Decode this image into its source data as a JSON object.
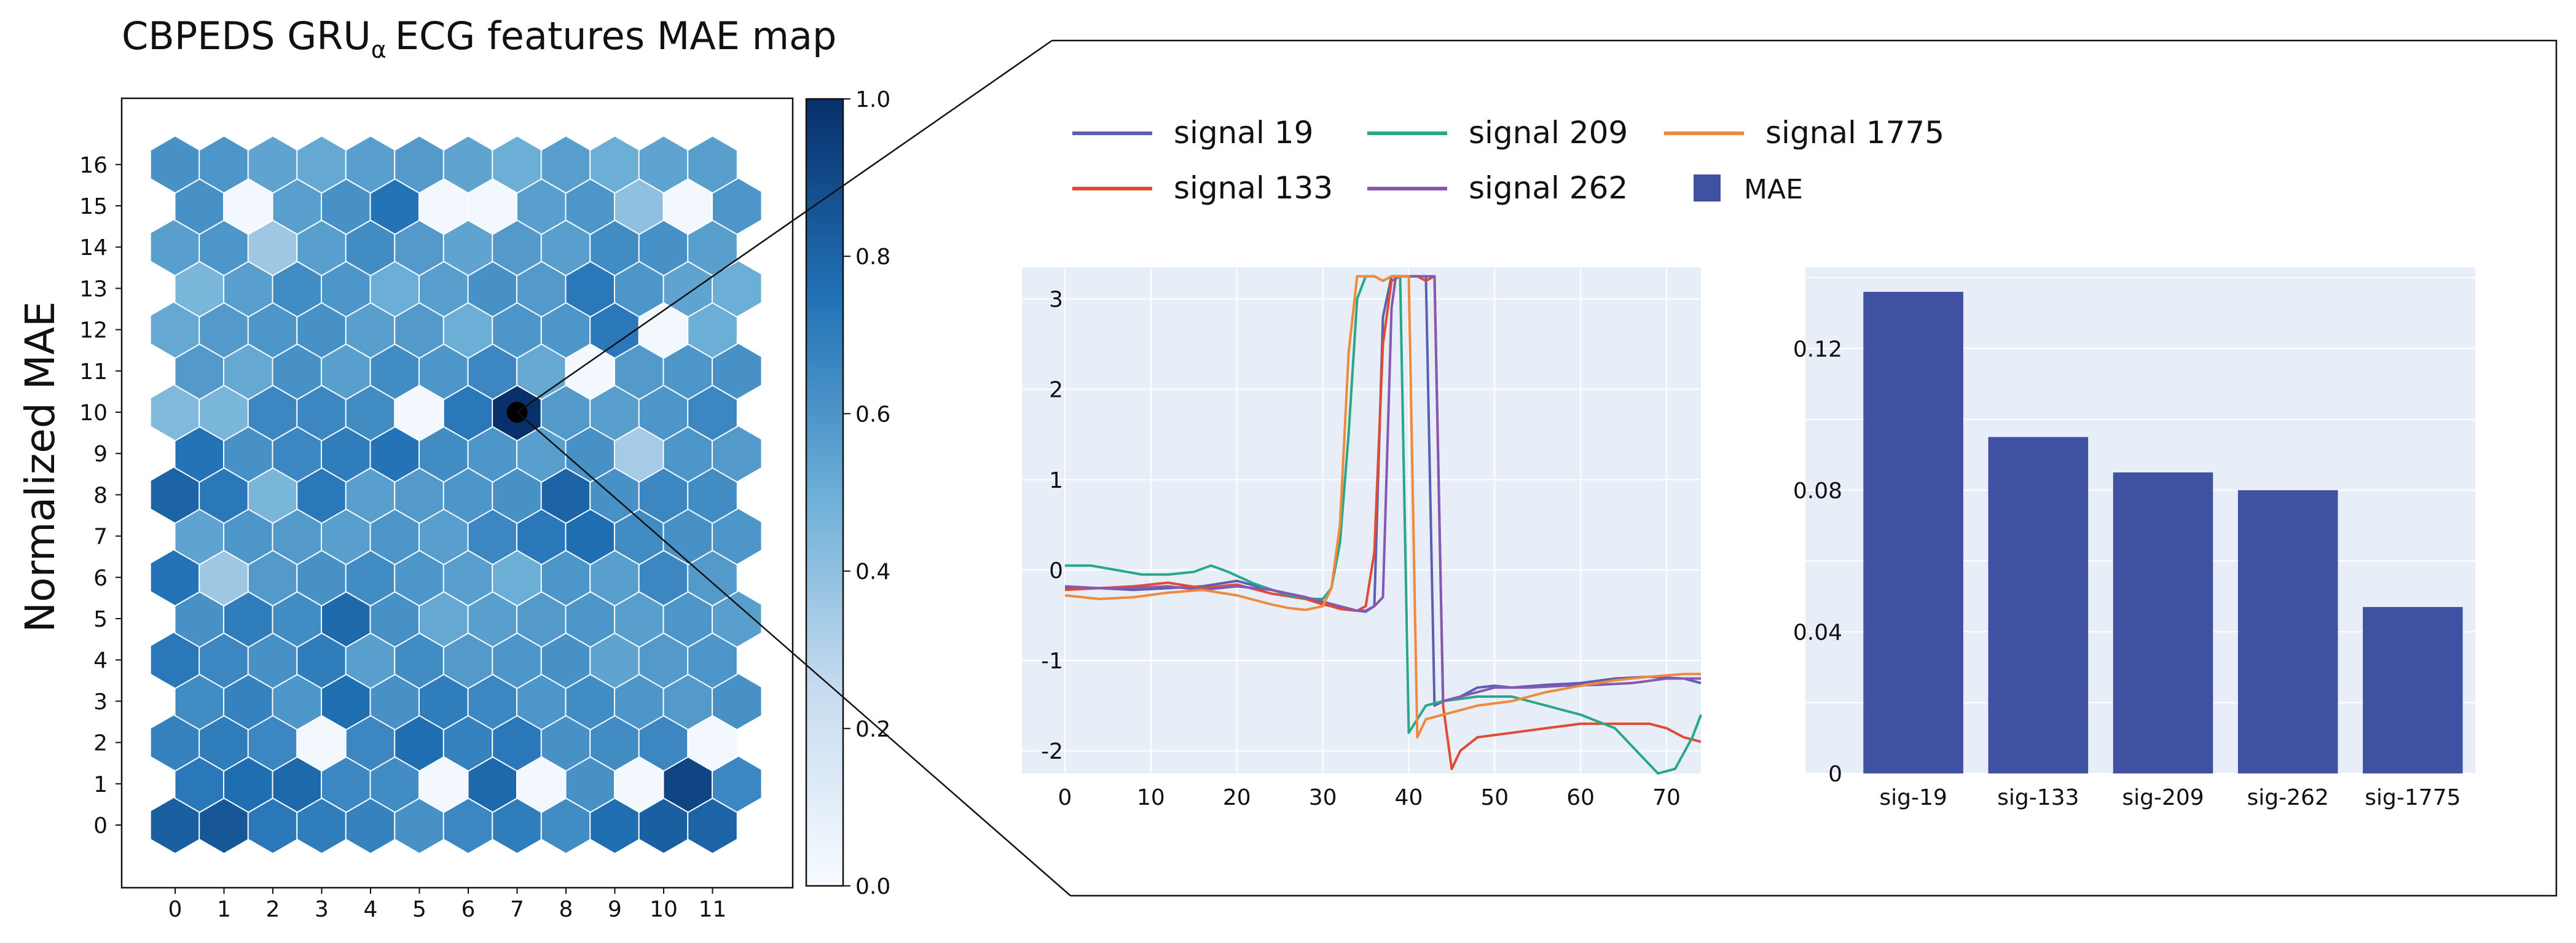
{
  "chart_data": [
    {
      "type": "heatmap",
      "title": "CBPEDS GRU",
      "title_subscript": "α",
      "title_rest": "ECG features MAE map",
      "ylabel": "Normalized MAE",
      "x_ticks": [
        "0",
        "1",
        "2",
        "3",
        "4",
        "5",
        "6",
        "7",
        "8",
        "9",
        "10",
        "11"
      ],
      "y_ticks": [
        "0",
        "1",
        "2",
        "3",
        "4",
        "5",
        "6",
        "7",
        "8",
        "9",
        "10",
        "11",
        "12",
        "13",
        "14",
        "15",
        "16"
      ],
      "cols": 12,
      "rows": 17,
      "highlight_cell": [
        7,
        10
      ],
      "colorbar": {
        "min": 0.0,
        "max": 1.0,
        "ticks": [
          "0.0",
          "0.2",
          "0.4",
          "0.6",
          "0.8",
          "1.0"
        ]
      },
      "colorscale": [
        "#f7fbff",
        "#c6dbef",
        "#6baed6",
        "#2171b5",
        "#08306b"
      ],
      "values": [
        [
          0.82,
          0.85,
          0.72,
          0.7,
          0.68,
          0.62,
          0.66,
          0.7,
          0.64,
          0.76,
          0.82,
          0.8
        ],
        [
          0.72,
          0.76,
          0.78,
          0.66,
          0.64,
          0.02,
          0.78,
          0.02,
          0.62,
          0.02,
          0.92,
          0.66
        ],
        [
          0.68,
          0.7,
          0.66,
          0.02,
          0.66,
          0.76,
          0.68,
          0.72,
          0.62,
          0.64,
          0.66,
          0.02
        ],
        [
          0.64,
          0.68,
          0.6,
          0.76,
          0.62,
          0.7,
          0.66,
          0.6,
          0.64,
          0.6,
          0.58,
          0.62
        ],
        [
          0.72,
          0.66,
          0.62,
          0.7,
          0.56,
          0.64,
          0.58,
          0.6,
          0.62,
          0.54,
          0.58,
          0.6
        ],
        [
          0.62,
          0.7,
          0.64,
          0.78,
          0.62,
          0.52,
          0.56,
          0.58,
          0.6,
          0.56,
          0.6,
          0.56
        ],
        [
          0.74,
          0.36,
          0.58,
          0.62,
          0.64,
          0.6,
          0.56,
          0.5,
          0.6,
          0.56,
          0.66,
          0.58
        ],
        [
          0.54,
          0.6,
          0.58,
          0.56,
          0.6,
          0.56,
          0.66,
          0.72,
          0.76,
          0.64,
          0.62,
          0.6
        ],
        [
          0.8,
          0.72,
          0.46,
          0.72,
          0.56,
          0.58,
          0.6,
          0.62,
          0.8,
          0.62,
          0.66,
          0.64
        ],
        [
          0.74,
          0.62,
          0.66,
          0.7,
          0.74,
          0.64,
          0.6,
          0.56,
          0.62,
          0.34,
          0.6,
          0.58
        ],
        [
          0.44,
          0.46,
          0.66,
          0.66,
          0.64,
          0.02,
          0.72,
          1.0,
          0.58,
          0.56,
          0.6,
          0.66
        ],
        [
          0.58,
          0.52,
          0.62,
          0.56,
          0.64,
          0.6,
          0.66,
          0.52,
          0.02,
          0.58,
          0.6,
          0.62
        ],
        [
          0.52,
          0.58,
          0.6,
          0.62,
          0.56,
          0.58,
          0.5,
          0.6,
          0.6,
          0.72,
          0.02,
          0.5
        ],
        [
          0.46,
          0.56,
          0.64,
          0.6,
          0.5,
          0.56,
          0.62,
          0.58,
          0.72,
          0.6,
          0.54,
          0.5
        ],
        [
          0.56,
          0.6,
          0.36,
          0.56,
          0.64,
          0.58,
          0.54,
          0.58,
          0.56,
          0.64,
          0.62,
          0.56
        ],
        [
          0.62,
          0.02,
          0.56,
          0.62,
          0.74,
          0.02,
          0.02,
          0.56,
          0.6,
          0.4,
          0.02,
          0.6
        ],
        [
          0.62,
          0.6,
          0.54,
          0.52,
          0.56,
          0.58,
          0.54,
          0.5,
          0.56,
          0.5,
          0.54,
          0.56
        ]
      ]
    },
    {
      "type": "line",
      "x_ticks": [
        "0",
        "10",
        "20",
        "30",
        "40",
        "50",
        "60",
        "70"
      ],
      "y_ticks": [
        "-2",
        "-1",
        "0",
        "1",
        "2",
        "3"
      ],
      "xlim": [
        0,
        74
      ],
      "ylim": [
        -2.25,
        3.35
      ],
      "grid": true,
      "series": [
        {
          "name": "signal 19",
          "color": "#5b5fb0",
          "x": [
            0,
            4,
            8,
            12,
            16,
            20,
            24,
            28,
            30,
            31,
            32,
            33,
            34,
            35,
            36,
            37,
            38,
            39,
            40,
            41,
            42,
            43,
            44,
            46,
            48,
            50,
            52,
            56,
            60,
            64,
            68,
            72,
            74
          ],
          "y": [
            -0.2,
            -0.2,
            -0.22,
            -0.2,
            -0.18,
            -0.12,
            -0.22,
            -0.3,
            -0.38,
            -0.4,
            -0.42,
            -0.44,
            -0.45,
            -0.46,
            -0.4,
            2.8,
            3.25,
            3.25,
            3.25,
            3.25,
            3.25,
            -1.5,
            -1.45,
            -1.4,
            -1.3,
            -1.28,
            -1.3,
            -1.27,
            -1.25,
            -1.2,
            -1.18,
            -1.2,
            -1.25
          ]
        },
        {
          "name": "signal 133",
          "color": "#e04b32",
          "x": [
            0,
            4,
            8,
            12,
            16,
            20,
            24,
            28,
            30,
            31,
            32,
            33,
            34,
            35,
            36,
            37,
            38,
            39,
            40,
            41,
            42,
            43,
            44,
            45,
            46,
            48,
            52,
            56,
            60,
            64,
            68,
            70,
            72,
            74
          ],
          "y": [
            -0.22,
            -0.2,
            -0.18,
            -0.14,
            -0.2,
            -0.16,
            -0.26,
            -0.32,
            -0.38,
            -0.4,
            -0.43,
            -0.44,
            -0.45,
            -0.4,
            0.2,
            2.5,
            3.2,
            3.25,
            3.25,
            3.25,
            3.2,
            3.25,
            -1.5,
            -2.2,
            -2.0,
            -1.85,
            -1.8,
            -1.75,
            -1.7,
            -1.7,
            -1.7,
            -1.75,
            -1.85,
            -1.9
          ]
        },
        {
          "name": "signal 209",
          "color": "#28a888",
          "x": [
            0,
            3,
            6,
            9,
            12,
            15,
            17,
            19,
            22,
            26,
            29,
            30,
            31,
            32,
            33,
            34,
            35,
            36,
            37,
            38,
            39,
            40,
            42,
            44,
            48,
            52,
            56,
            60,
            64,
            67,
            69,
            71,
            73,
            74
          ],
          "y": [
            0.05,
            0.05,
            0.0,
            -0.05,
            -0.05,
            -0.02,
            0.05,
            -0.02,
            -0.15,
            -0.28,
            -0.32,
            -0.32,
            -0.2,
            0.3,
            1.5,
            3.0,
            3.25,
            3.25,
            3.2,
            3.25,
            3.25,
            -1.8,
            -1.5,
            -1.45,
            -1.4,
            -1.4,
            -1.5,
            -1.6,
            -1.75,
            -2.05,
            -2.25,
            -2.2,
            -1.85,
            -1.6
          ]
        },
        {
          "name": "signal 262",
          "color": "#8658b4",
          "x": [
            0,
            4,
            8,
            12,
            16,
            20,
            24,
            28,
            32,
            34,
            35,
            36,
            37,
            38,
            38.5,
            39,
            40,
            41,
            42,
            43,
            44,
            46,
            48,
            50,
            54,
            58,
            62,
            66,
            70,
            74
          ],
          "y": [
            -0.18,
            -0.2,
            -0.2,
            -0.18,
            -0.22,
            -0.18,
            -0.22,
            -0.3,
            -0.4,
            -0.45,
            -0.45,
            -0.4,
            -0.3,
            2.9,
            3.25,
            3.25,
            3.25,
            3.25,
            3.25,
            3.25,
            -1.45,
            -1.4,
            -1.35,
            -1.3,
            -1.3,
            -1.28,
            -1.27,
            -1.25,
            -1.2,
            -1.2
          ]
        },
        {
          "name": "signal 1775",
          "color": "#ef8a3c",
          "x": [
            0,
            4,
            8,
            12,
            16,
            20,
            24,
            26,
            28,
            30,
            31,
            32,
            33,
            34,
            35,
            36,
            37,
            38,
            39,
            40,
            41,
            42,
            44,
            48,
            52,
            56,
            60,
            64,
            68,
            72,
            74
          ],
          "y": [
            -0.28,
            -0.32,
            -0.3,
            -0.25,
            -0.22,
            -0.28,
            -0.38,
            -0.42,
            -0.44,
            -0.4,
            -0.2,
            0.5,
            2.4,
            3.25,
            3.25,
            3.25,
            3.2,
            3.25,
            3.25,
            3.25,
            -1.85,
            -1.65,
            -1.6,
            -1.5,
            -1.45,
            -1.35,
            -1.28,
            -1.22,
            -1.18,
            -1.15,
            -1.15
          ]
        }
      ],
      "legend": [
        {
          "label": "signal 19",
          "color": "#5b5fb0",
          "kind": "line"
        },
        {
          "label": "signal 209",
          "color": "#28a888",
          "kind": "line"
        },
        {
          "label": "signal 1775",
          "color": "#ef8a3c",
          "kind": "line"
        },
        {
          "label": "signal 133",
          "color": "#e04b32",
          "kind": "line"
        },
        {
          "label": "signal 262",
          "color": "#8658b4",
          "kind": "line"
        },
        {
          "label": "MAE",
          "color": "#3f51a0",
          "kind": "box"
        }
      ]
    },
    {
      "type": "bar",
      "categories": [
        "sig-19",
        "sig-133",
        "sig-209",
        "sig-262",
        "sig-1775"
      ],
      "values": [
        0.136,
        0.095,
        0.085,
        0.08,
        0.047
      ],
      "ylim": [
        0,
        0.14
      ],
      "y_ticks": [
        "0",
        "0.04",
        "0.08",
        "0.12"
      ],
      "color": "#3f51a0"
    }
  ]
}
